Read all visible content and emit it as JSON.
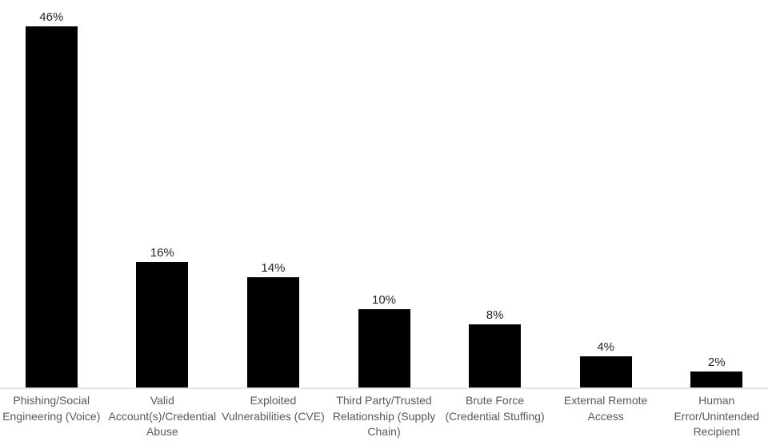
{
  "chart_data": {
    "type": "bar",
    "title": "",
    "xlabel": "",
    "ylabel": "",
    "unit": "%",
    "grid": false,
    "legend": false,
    "ylim": [
      0,
      50
    ],
    "categories": [
      "Phishing/Social Engineering (Voice)",
      "Valid Account(s)/Credential Abuse",
      "Exploited Vulnerabilities (CVE)",
      "Third Party/Trusted Relationship (Supply Chain)",
      "Brute Force (Credential Stuffing)",
      "External Remote Access",
      "Human Error/Unintended Recipient"
    ],
    "categories_wrapped": [
      "Phishing/Social\nEngineering (Voice)",
      "Valid\nAccount(s)/Credential\nAbuse",
      "Exploited\nVulnerabilities (CVE)",
      "Third Party/Trusted\nRelationship (Supply\nChain)",
      "Brute Force\n(Credential Stuffing)",
      "External Remote\nAccess",
      "Human\nError/Unintended\nRecipient"
    ],
    "values": [
      46,
      16,
      14,
      10,
      8,
      4,
      2
    ],
    "value_labels": [
      "46%",
      "16%",
      "14%",
      "10%",
      "8%",
      "4%",
      "2%"
    ],
    "bar_color": "#000000",
    "data_label_color": "#262626",
    "category_label_color": "#595959",
    "axis_line_color": "#e3e3e3",
    "background_color": "#ffffff"
  }
}
